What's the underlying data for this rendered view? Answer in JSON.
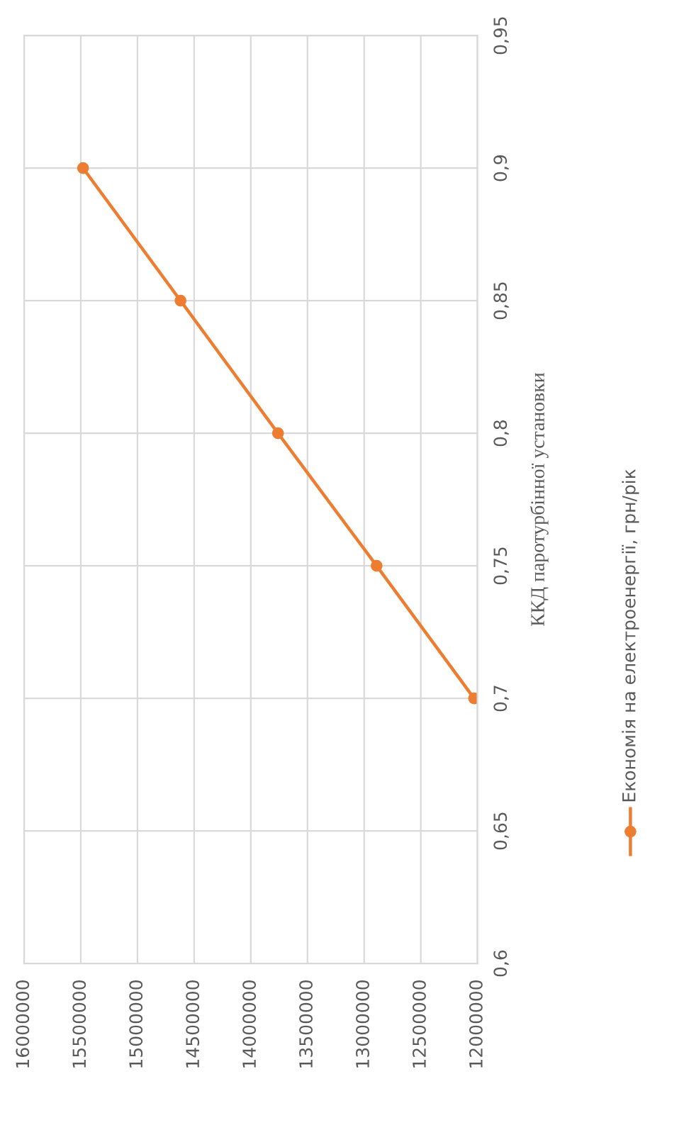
{
  "chart_data": {
    "type": "line",
    "ylabel": "ККД паротурбінної установки",
    "series": [
      {
        "name": "Економія на електроенергії, грн/рік",
        "color": "#ed7d31",
        "x": [
          12030000,
          12890000,
          13760000,
          14620000,
          15480000
        ],
        "values": [
          0.7,
          0.75,
          0.8,
          0.85,
          0.9
        ]
      }
    ],
    "ylim": [
      0.6,
      0.95
    ],
    "yticks": [
      {
        "value": 0.6,
        "label": "0,6"
      },
      {
        "value": 0.65,
        "label": "0,65"
      },
      {
        "value": 0.7,
        "label": "0,7"
      },
      {
        "value": 0.75,
        "label": "0,75"
      },
      {
        "value": 0.8,
        "label": "0,8"
      },
      {
        "value": 0.85,
        "label": "0,85"
      },
      {
        "value": 0.9,
        "label": "0,9"
      },
      {
        "value": 0.95,
        "label": "0,95"
      }
    ],
    "xlim": [
      16000000,
      12000000
    ],
    "xticks": [
      16000000,
      15500000,
      15000000,
      14500000,
      14000000,
      13500000,
      13000000,
      12500000,
      12000000
    ],
    "grid": true,
    "legend": "right",
    "marker": "circle",
    "line_style": "solid"
  }
}
